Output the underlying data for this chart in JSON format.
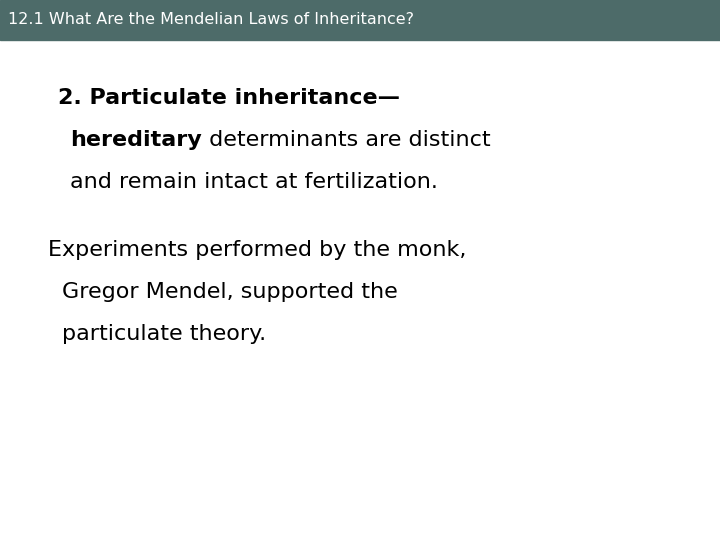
{
  "header_text": "12.1 What Are the Mendelian Laws of Inheritance?",
  "header_bg_color": "#4d6b69",
  "header_text_color": "#ffffff",
  "header_font_size": 11.5,
  "body_bg_color": "#ffffff",
  "paragraph1_line1_bold": "2. Particulate inheritance—",
  "paragraph1_line2_bold": "hereditary",
  "paragraph1_line2_normal": " determinants are distinct",
  "paragraph1_line3": "and remain intact at fertilization.",
  "paragraph2_line1": "Experiments performed by the monk,",
  "paragraph2_line2": "Gregor Mendel, supported the",
  "paragraph2_line3": "particulate theory.",
  "body_font_size": 16,
  "body_text_color": "#000000",
  "fig_width": 7.2,
  "fig_height": 5.4,
  "dpi": 100
}
